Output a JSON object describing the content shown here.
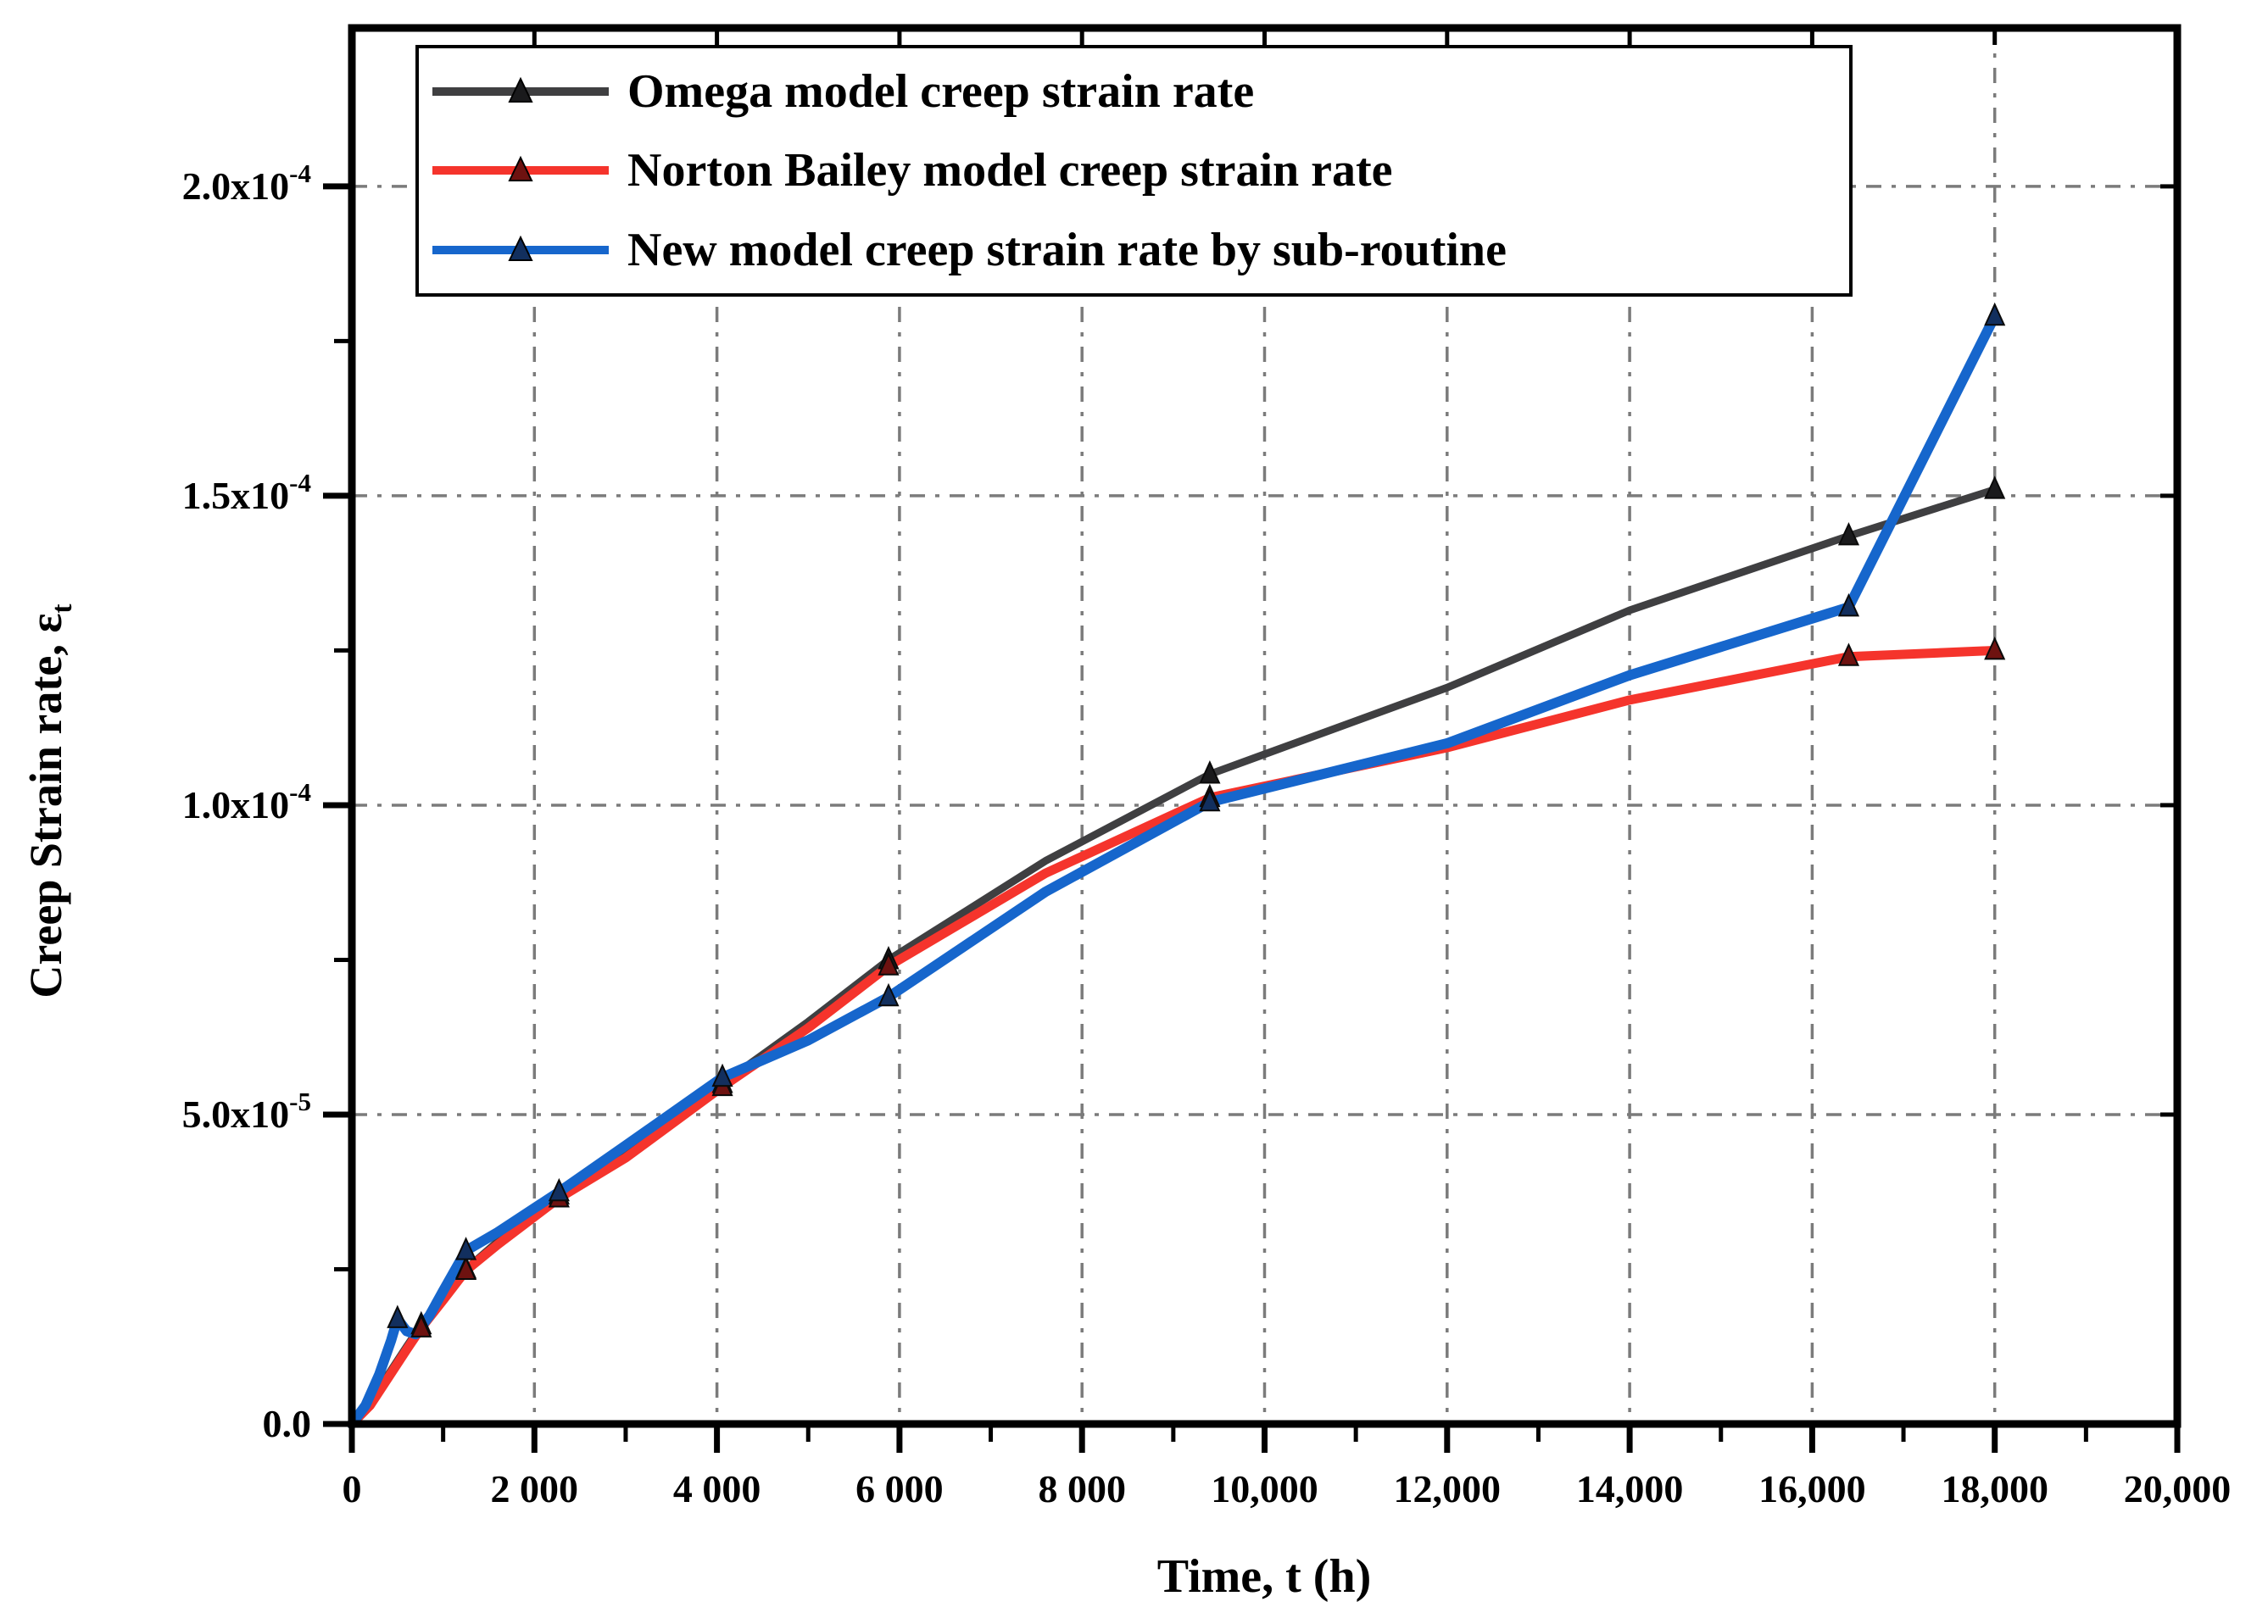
{
  "page": {
    "background": "#ffffff"
  },
  "chart_data": {
    "type": "line",
    "title": "",
    "xlabel": "Time, t (h)",
    "ylabel": "Creep Strain rate, ε",
    "ylabel_subscript": "t",
    "xlim": [
      0,
      20000
    ],
    "ylim": [
      0,
      0.0002256
    ],
    "x_minor_step": 1000,
    "y_minor_step": 2.5e-05,
    "x_major_ticks": [
      {
        "value": 0,
        "label": "0"
      },
      {
        "value": 2000,
        "label": "2 000"
      },
      {
        "value": 4000,
        "label": "4 000"
      },
      {
        "value": 6000,
        "label": "6 000"
      },
      {
        "value": 8000,
        "label": "8 000"
      },
      {
        "value": 10000,
        "label": "10,000"
      },
      {
        "value": 12000,
        "label": "12,000"
      },
      {
        "value": 14000,
        "label": "14,000"
      },
      {
        "value": 16000,
        "label": "16,000"
      },
      {
        "value": 18000,
        "label": "18,000"
      },
      {
        "value": 20000,
        "label": "20,000"
      }
    ],
    "y_major_ticks": [
      {
        "value": 0,
        "mantissa": "0.0",
        "exponent": ""
      },
      {
        "value": 5e-05,
        "mantissa": "5.0x10",
        "exponent": "-5"
      },
      {
        "value": 0.0001,
        "mantissa": "1.0x10",
        "exponent": "-4"
      },
      {
        "value": 0.00015,
        "mantissa": "1.5x10",
        "exponent": "-4"
      },
      {
        "value": 0.0002,
        "mantissa": "2.0x10",
        "exponent": "-4"
      }
    ],
    "grid": {
      "color": "#7b7b7b",
      "x_values": [
        2000,
        4000,
        6000,
        8000,
        10000,
        12000,
        14000,
        16000,
        18000
      ],
      "y_values": [
        5e-05,
        0.0001,
        0.00015,
        0.0002
      ]
    },
    "legend_position": "top-left",
    "series": [
      {
        "name": "Omega model creep strain rate",
        "color": "#3f3f41",
        "marker_color": "#1a1a1c",
        "stroke_width": 9,
        "points": [
          [
            0,
            0
          ],
          [
            200,
            3.5e-06
          ],
          [
            400,
            8e-06
          ],
          [
            600,
            1.25e-05
          ],
          [
            760,
            1.6e-05
          ],
          [
            1000,
            2.05e-05
          ],
          [
            1250,
            2.5e-05
          ],
          [
            1600,
            2.95e-05
          ],
          [
            2270,
            3.7e-05
          ],
          [
            3000,
            4.4e-05
          ],
          [
            4060,
            5.5e-05
          ],
          [
            5000,
            6.5e-05
          ],
          [
            5880,
            7.5e-05
          ],
          [
            7600,
            9.1e-05
          ],
          [
            9400,
            0.000105
          ],
          [
            12000,
            0.000119
          ],
          [
            14000,
            0.0001315
          ],
          [
            16400,
            0.0001435
          ],
          [
            18000,
            0.000151
          ]
        ],
        "markers_at": [
          760,
          1250,
          2270,
          4060,
          5880,
          9400,
          16400,
          18000
        ]
      },
      {
        "name": "Norton Bailey model creep strain rate",
        "color": "#f5342c",
        "marker_color": "#6e1210",
        "stroke_width": 11,
        "points": [
          [
            0,
            0
          ],
          [
            200,
            3e-06
          ],
          [
            400,
            7.5e-06
          ],
          [
            600,
            1.2e-05
          ],
          [
            760,
            1.55e-05
          ],
          [
            1000,
            2e-05
          ],
          [
            1250,
            2.48e-05
          ],
          [
            1600,
            2.9e-05
          ],
          [
            2270,
            3.65e-05
          ],
          [
            3000,
            4.3e-05
          ],
          [
            4060,
            5.45e-05
          ],
          [
            5000,
            6.4e-05
          ],
          [
            5880,
            7.4e-05
          ],
          [
            7600,
            8.9e-05
          ],
          [
            9400,
            0.0001012
          ],
          [
            12000,
            0.0001093
          ],
          [
            14000,
            0.000117
          ],
          [
            16400,
            0.000124
          ],
          [
            18000,
            0.000125
          ]
        ],
        "markers_at": [
          760,
          1250,
          2270,
          4060,
          5880,
          9400,
          16400,
          18000
        ]
      },
      {
        "name": "New model creep strain rate by sub-routine",
        "color": "#1666cc",
        "marker_color": "#122f5e",
        "stroke_width": 12,
        "points": [
          [
            0,
            0
          ],
          [
            150,
            3e-06
          ],
          [
            300,
            8e-06
          ],
          [
            430,
            1.35e-05
          ],
          [
            500,
            1.7e-05
          ],
          [
            600,
            1.5e-05
          ],
          [
            700,
            1.45e-05
          ],
          [
            850,
            1.75e-05
          ],
          [
            1000,
            2.15e-05
          ],
          [
            1250,
            2.8e-05
          ],
          [
            1600,
            3.1e-05
          ],
          [
            2270,
            3.75e-05
          ],
          [
            3000,
            4.5e-05
          ],
          [
            4060,
            5.6e-05
          ],
          [
            5000,
            6.2e-05
          ],
          [
            5880,
            6.9e-05
          ],
          [
            7600,
            8.6e-05
          ],
          [
            9400,
            0.0001005
          ],
          [
            12000,
            0.00011
          ],
          [
            14000,
            0.000121
          ],
          [
            16400,
            0.000132
          ],
          [
            18000,
            0.000179
          ]
        ],
        "markers_at": [
          500,
          1250,
          2270,
          4060,
          5880,
          9400,
          16400,
          18000
        ]
      }
    ]
  }
}
